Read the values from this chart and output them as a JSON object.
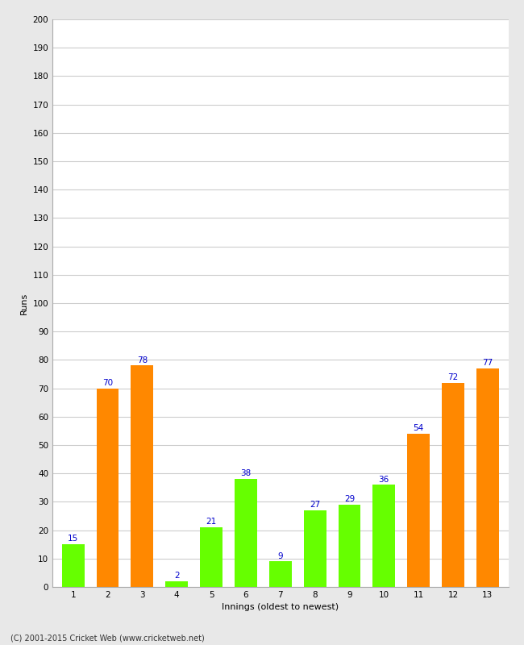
{
  "innings": [
    1,
    2,
    3,
    4,
    5,
    6,
    7,
    8,
    9,
    10,
    11,
    12,
    13
  ],
  "values": [
    15,
    70,
    78,
    2,
    21,
    38,
    9,
    27,
    29,
    36,
    54,
    72,
    77
  ],
  "colors": [
    "#66ff00",
    "#ff8800",
    "#ff8800",
    "#66ff00",
    "#66ff00",
    "#66ff00",
    "#66ff00",
    "#66ff00",
    "#66ff00",
    "#66ff00",
    "#ff8800",
    "#ff8800",
    "#ff8800"
  ],
  "xlabel": "Innings (oldest to newest)",
  "ylabel": "Runs",
  "ylim": [
    0,
    200
  ],
  "yticks": [
    0,
    10,
    20,
    30,
    40,
    50,
    60,
    70,
    80,
    90,
    100,
    110,
    120,
    130,
    140,
    150,
    160,
    170,
    180,
    190,
    200
  ],
  "label_color": "#0000cc",
  "label_fontsize": 7.5,
  "axis_label_fontsize": 8,
  "tick_fontsize": 7.5,
  "plot_bg_color": "#ffffff",
  "fig_bg_color": "#e8e8e8",
  "grid_color": "#cccccc",
  "footer": "(C) 2001-2015 Cricket Web (www.cricketweb.net)"
}
